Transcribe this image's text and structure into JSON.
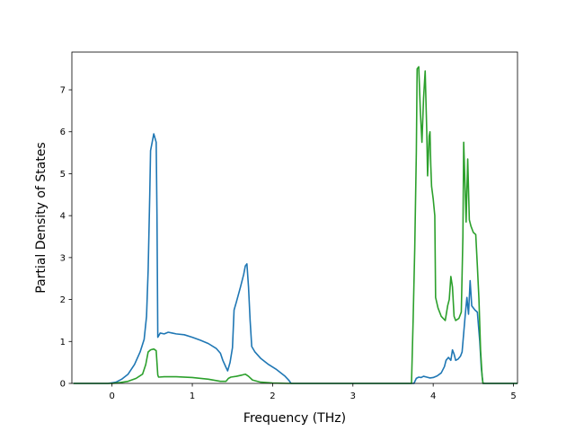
{
  "chart_data": {
    "type": "line",
    "title": "",
    "xlabel": "Frequency (THz)",
    "ylabel": "Partial Density of States",
    "xlim": [
      -0.5,
      5.05
    ],
    "ylim": [
      0,
      7.9
    ],
    "xticks": [
      0,
      1,
      2,
      3,
      4,
      5
    ],
    "yticks": [
      0,
      1,
      2,
      3,
      4,
      5,
      6,
      7
    ],
    "grid": false,
    "series": [
      {
        "color": "#1f77b4",
        "points": [
          [
            -0.48,
            0
          ],
          [
            -0.05,
            0
          ],
          [
            0.05,
            0.03
          ],
          [
            0.12,
            0.1
          ],
          [
            0.2,
            0.22
          ],
          [
            0.28,
            0.45
          ],
          [
            0.35,
            0.75
          ],
          [
            0.4,
            1.05
          ],
          [
            0.43,
            1.6
          ],
          [
            0.45,
            2.7
          ],
          [
            0.47,
            4.5
          ],
          [
            0.48,
            5.55
          ],
          [
            0.5,
            5.75
          ],
          [
            0.52,
            5.95
          ],
          [
            0.55,
            5.75
          ],
          [
            0.56,
            4.0
          ],
          [
            0.57,
            1.1
          ],
          [
            0.6,
            1.2
          ],
          [
            0.65,
            1.18
          ],
          [
            0.7,
            1.22
          ],
          [
            0.75,
            1.2
          ],
          [
            0.8,
            1.18
          ],
          [
            0.9,
            1.16
          ],
          [
            1.0,
            1.1
          ],
          [
            1.1,
            1.03
          ],
          [
            1.2,
            0.95
          ],
          [
            1.3,
            0.83
          ],
          [
            1.35,
            0.72
          ],
          [
            1.38,
            0.55
          ],
          [
            1.42,
            0.38
          ],
          [
            1.44,
            0.3
          ],
          [
            1.47,
            0.5
          ],
          [
            1.5,
            0.85
          ],
          [
            1.52,
            1.75
          ],
          [
            1.55,
            1.95
          ],
          [
            1.6,
            2.3
          ],
          [
            1.64,
            2.6
          ],
          [
            1.66,
            2.8
          ],
          [
            1.68,
            2.85
          ],
          [
            1.7,
            2.3
          ],
          [
            1.72,
            1.5
          ],
          [
            1.74,
            0.88
          ],
          [
            1.78,
            0.75
          ],
          [
            1.85,
            0.6
          ],
          [
            1.95,
            0.45
          ],
          [
            2.05,
            0.33
          ],
          [
            2.15,
            0.18
          ],
          [
            2.2,
            0.08
          ],
          [
            2.23,
            0.0
          ],
          [
            2.5,
            0
          ],
          [
            3.5,
            0
          ],
          [
            3.76,
            0
          ],
          [
            3.79,
            0.12
          ],
          [
            3.82,
            0.15
          ],
          [
            3.85,
            0.14
          ],
          [
            3.88,
            0.17
          ],
          [
            3.92,
            0.15
          ],
          [
            3.96,
            0.13
          ],
          [
            4.0,
            0.14
          ],
          [
            4.05,
            0.18
          ],
          [
            4.1,
            0.25
          ],
          [
            4.14,
            0.4
          ],
          [
            4.16,
            0.55
          ],
          [
            4.19,
            0.62
          ],
          [
            4.22,
            0.55
          ],
          [
            4.24,
            0.8
          ],
          [
            4.26,
            0.7
          ],
          [
            4.28,
            0.55
          ],
          [
            4.31,
            0.58
          ],
          [
            4.34,
            0.65
          ],
          [
            4.36,
            0.75
          ],
          [
            4.38,
            1.2
          ],
          [
            4.4,
            1.65
          ],
          [
            4.42,
            2.05
          ],
          [
            4.44,
            1.65
          ],
          [
            4.46,
            2.45
          ],
          [
            4.48,
            1.85
          ],
          [
            4.52,
            1.75
          ],
          [
            4.55,
            1.7
          ],
          [
            4.58,
            1.0
          ],
          [
            4.6,
            0.35
          ],
          [
            4.62,
            0
          ],
          [
            5.05,
            0
          ]
        ]
      },
      {
        "color": "#2ca02c",
        "points": [
          [
            -0.48,
            0
          ],
          [
            0.0,
            0
          ],
          [
            0.1,
            0.02
          ],
          [
            0.2,
            0.05
          ],
          [
            0.3,
            0.12
          ],
          [
            0.38,
            0.22
          ],
          [
            0.42,
            0.45
          ],
          [
            0.45,
            0.75
          ],
          [
            0.48,
            0.8
          ],
          [
            0.52,
            0.82
          ],
          [
            0.55,
            0.78
          ],
          [
            0.57,
            0.2
          ],
          [
            0.58,
            0.15
          ],
          [
            0.65,
            0.16
          ],
          [
            0.8,
            0.16
          ],
          [
            1.0,
            0.14
          ],
          [
            1.2,
            0.1
          ],
          [
            1.35,
            0.05
          ],
          [
            1.42,
            0.05
          ],
          [
            1.45,
            0.12
          ],
          [
            1.48,
            0.15
          ],
          [
            1.55,
            0.17
          ],
          [
            1.62,
            0.2
          ],
          [
            1.66,
            0.22
          ],
          [
            1.7,
            0.17
          ],
          [
            1.75,
            0.08
          ],
          [
            1.85,
            0.03
          ],
          [
            2.0,
            0.01
          ],
          [
            2.2,
            0
          ],
          [
            3.0,
            0
          ],
          [
            3.73,
            0
          ],
          [
            3.75,
            1.5
          ],
          [
            3.77,
            3.2
          ],
          [
            3.79,
            5.5
          ],
          [
            3.8,
            7.5
          ],
          [
            3.82,
            7.55
          ],
          [
            3.84,
            6.5
          ],
          [
            3.86,
            5.75
          ],
          [
            3.88,
            6.8
          ],
          [
            3.9,
            7.45
          ],
          [
            3.92,
            6.0
          ],
          [
            3.93,
            4.95
          ],
          [
            3.95,
            5.9
          ],
          [
            3.96,
            6.0
          ],
          [
            3.97,
            5.2
          ],
          [
            3.98,
            4.7
          ],
          [
            4.0,
            4.4
          ],
          [
            4.02,
            4.0
          ],
          [
            4.03,
            2.05
          ],
          [
            4.06,
            1.8
          ],
          [
            4.1,
            1.6
          ],
          [
            4.15,
            1.5
          ],
          [
            4.18,
            1.85
          ],
          [
            4.2,
            2.0
          ],
          [
            4.22,
            2.55
          ],
          [
            4.24,
            2.3
          ],
          [
            4.26,
            1.6
          ],
          [
            4.28,
            1.5
          ],
          [
            4.32,
            1.55
          ],
          [
            4.35,
            1.7
          ],
          [
            4.37,
            3.5
          ],
          [
            4.38,
            5.75
          ],
          [
            4.4,
            4.5
          ],
          [
            4.41,
            3.85
          ],
          [
            4.43,
            5.35
          ],
          [
            4.45,
            3.9
          ],
          [
            4.47,
            3.75
          ],
          [
            4.5,
            3.6
          ],
          [
            4.53,
            3.55
          ],
          [
            4.55,
            2.8
          ],
          [
            4.57,
            2.0
          ],
          [
            4.59,
            0.8
          ],
          [
            4.61,
            0.15
          ],
          [
            4.62,
            0
          ],
          [
            5.05,
            0
          ]
        ]
      }
    ]
  }
}
